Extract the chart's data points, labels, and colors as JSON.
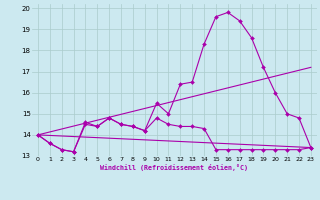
{
  "background_color": "#cce9f0",
  "line_color": "#aa00aa",
  "grid_color": "#aacccc",
  "xlabel": "Windchill (Refroidissement éolien,°C)",
  "xlim": [
    -0.5,
    23.5
  ],
  "ylim": [
    13.0,
    20.2
  ],
  "xticks": [
    0,
    1,
    2,
    3,
    4,
    5,
    6,
    7,
    8,
    9,
    10,
    11,
    12,
    13,
    14,
    15,
    16,
    17,
    18,
    19,
    20,
    21,
    22,
    23
  ],
  "yticks": [
    13,
    14,
    15,
    16,
    17,
    18,
    19,
    20
  ],
  "series0_x": [
    0,
    1,
    2,
    3,
    4,
    5,
    6,
    7,
    8,
    9,
    10,
    11,
    12,
    13,
    14,
    15,
    16,
    17,
    18,
    19,
    20,
    21,
    22,
    23
  ],
  "series0_y": [
    14.0,
    13.6,
    13.3,
    13.2,
    14.6,
    14.4,
    14.8,
    14.5,
    14.4,
    14.2,
    15.5,
    15.0,
    16.4,
    16.5,
    18.3,
    19.6,
    19.8,
    19.4,
    18.6,
    17.2,
    16.0,
    15.0,
    14.8,
    13.4
  ],
  "series1_x": [
    0,
    1,
    2,
    3,
    4,
    5,
    6,
    7,
    8,
    9,
    10,
    11,
    12,
    13,
    14,
    15,
    16,
    17,
    18,
    19,
    20,
    21,
    22,
    23
  ],
  "series1_y": [
    14.0,
    13.6,
    13.3,
    13.2,
    14.5,
    14.4,
    14.8,
    14.5,
    14.4,
    14.2,
    14.8,
    14.5,
    14.4,
    14.4,
    14.3,
    13.3,
    13.3,
    13.3,
    13.3,
    13.3,
    13.3,
    13.3,
    13.3,
    13.4
  ],
  "series2_x": [
    0,
    23
  ],
  "series2_y": [
    14.0,
    17.2
  ],
  "series3_x": [
    0,
    23
  ],
  "series3_y": [
    14.0,
    13.4
  ]
}
